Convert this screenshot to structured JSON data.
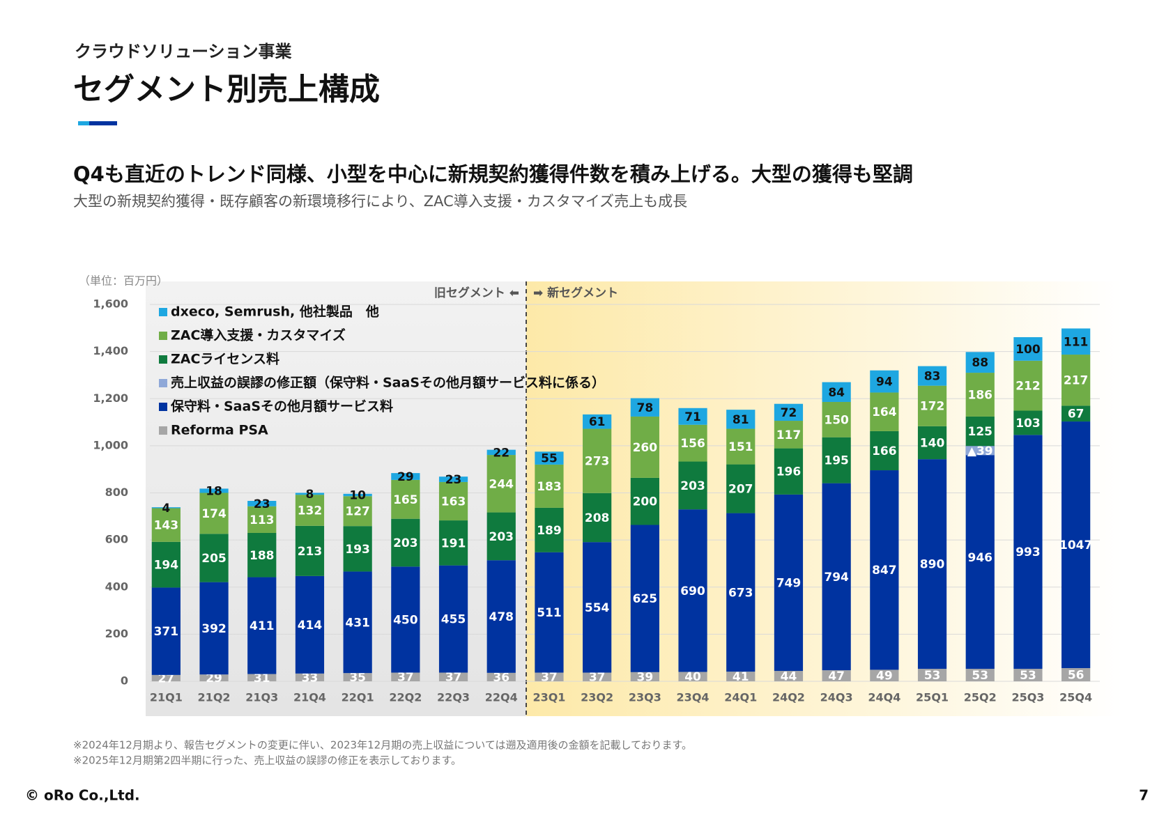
{
  "header": {
    "subtitle": "クラウドソリューション事業",
    "title": "セグメント別売上構成"
  },
  "headline": "Q4も直近のトレンド同様、小型を中心に新規契約獲得件数を積み上げる。大型の獲得も堅調",
  "subheadline": "大型の新規契約獲得・既存顧客の新環境移行により、ZAC導入支援・カスタマイズ売上も成長",
  "chart_data": {
    "type": "stacked_bar",
    "unit_label": "（単位：百万円）",
    "annotations": [
      "旧セグメント ⬅",
      "➡ 新セグメント"
    ],
    "categories": [
      "21Q1",
      "21Q2",
      "21Q3",
      "21Q4",
      "22Q1",
      "22Q2",
      "22Q3",
      "22Q4",
      "23Q1",
      "23Q2",
      "23Q3",
      "23Q4",
      "24Q1",
      "24Q2",
      "24Q3",
      "24Q4",
      "25Q1",
      "25Q2",
      "25Q3",
      "25Q4"
    ],
    "series": [
      {
        "name": "Reforma PSA",
        "color": "#a6a6a6",
        "values": [
          27,
          29,
          31,
          33,
          35,
          37,
          37,
          36,
          37,
          37,
          39,
          40,
          41,
          44,
          47,
          49,
          53,
          53,
          53,
          56
        ]
      },
      {
        "name": "保守料・SaaSその他月額サービス料",
        "color": "#0033a0",
        "values": [
          371,
          392,
          411,
          414,
          431,
          450,
          455,
          478,
          511,
          554,
          625,
          690,
          673,
          749,
          794,
          847,
          890,
          946,
          993,
          1047
        ]
      },
      {
        "name": "売上収益の誤謬の修正額（保守料・SaaSその他月額サービス料に係る）",
        "color": "#8fa8d8",
        "values": [
          null,
          null,
          null,
          null,
          null,
          null,
          null,
          null,
          null,
          null,
          null,
          null,
          null,
          null,
          null,
          null,
          null,
          -39,
          null,
          null
        ],
        "value_labels": [
          null,
          null,
          null,
          null,
          null,
          null,
          null,
          null,
          null,
          null,
          null,
          null,
          null,
          null,
          null,
          null,
          null,
          "▲39",
          null,
          null
        ]
      },
      {
        "name": "ZACライセンス料",
        "color": "#0f7a3e",
        "values": [
          194,
          205,
          188,
          213,
          193,
          203,
          191,
          203,
          189,
          208,
          200,
          203,
          207,
          196,
          195,
          166,
          140,
          125,
          103,
          67
        ]
      },
      {
        "name": "ZAC導入支援・カスタマイズ",
        "color": "#70ad47",
        "values": [
          143,
          174,
          113,
          132,
          127,
          165,
          163,
          244,
          183,
          273,
          260,
          156,
          151,
          117,
          150,
          164,
          172,
          186,
          212,
          217
        ]
      },
      {
        "name": "dxeco, Semrush, 他社製品　他",
        "color": "#1ea7e1",
        "values": [
          4,
          18,
          23,
          8,
          10,
          29,
          23,
          22,
          55,
          61,
          78,
          71,
          81,
          72,
          84,
          94,
          83,
          88,
          100,
          111
        ]
      }
    ],
    "ylim": [
      0,
      1600
    ],
    "yticks": [
      0,
      200,
      400,
      600,
      800,
      {
        "value": 1000,
        "label": "1,000"
      },
      {
        "value": 1200,
        "label": "1,200"
      },
      {
        "value": 1400,
        "label": "1,400"
      },
      {
        "value": 1600,
        "label": "1,600"
      }
    ],
    "grid": true,
    "legend": "top-left"
  },
  "footnotes": [
    "※2024年12月期より、報告セグメントの変更に伴い、2023年12月期の売上収益については遡及適用後の金額を記載しております。",
    "※2025年12月期第2四半期に行った、売上収益の誤謬の修正を表示しております。"
  ],
  "footer": {
    "company": "© oRo Co.,Ltd.",
    "page": "7"
  }
}
